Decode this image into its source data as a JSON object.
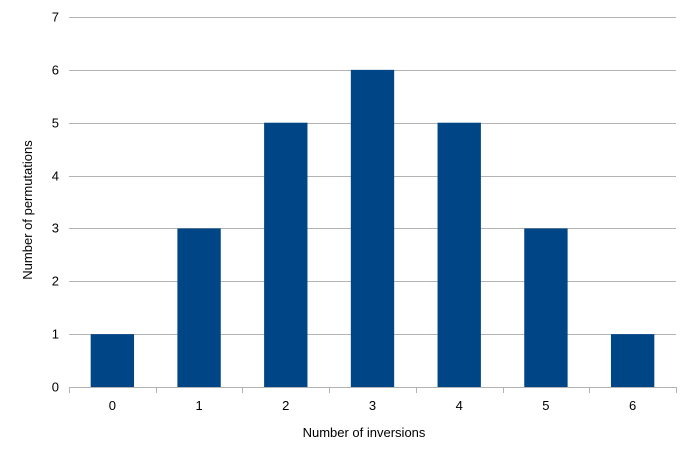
{
  "chart_data": {
    "type": "bar",
    "categories": [
      "0",
      "1",
      "2",
      "3",
      "4",
      "5",
      "6"
    ],
    "values": [
      1,
      3,
      5,
      6,
      5,
      3,
      1
    ],
    "title": "",
    "xlabel": "Number of inversions",
    "ylabel": "Number of permutations",
    "ylim": [
      0,
      7
    ],
    "yticks": [
      "0",
      "1",
      "2",
      "3",
      "4",
      "5",
      "6",
      "7"
    ],
    "grid": "horizontal",
    "legend": "none",
    "colors": {
      "bar": "#004586",
      "grid": "#b3b3b3",
      "axis": "#b3b3b3"
    }
  }
}
